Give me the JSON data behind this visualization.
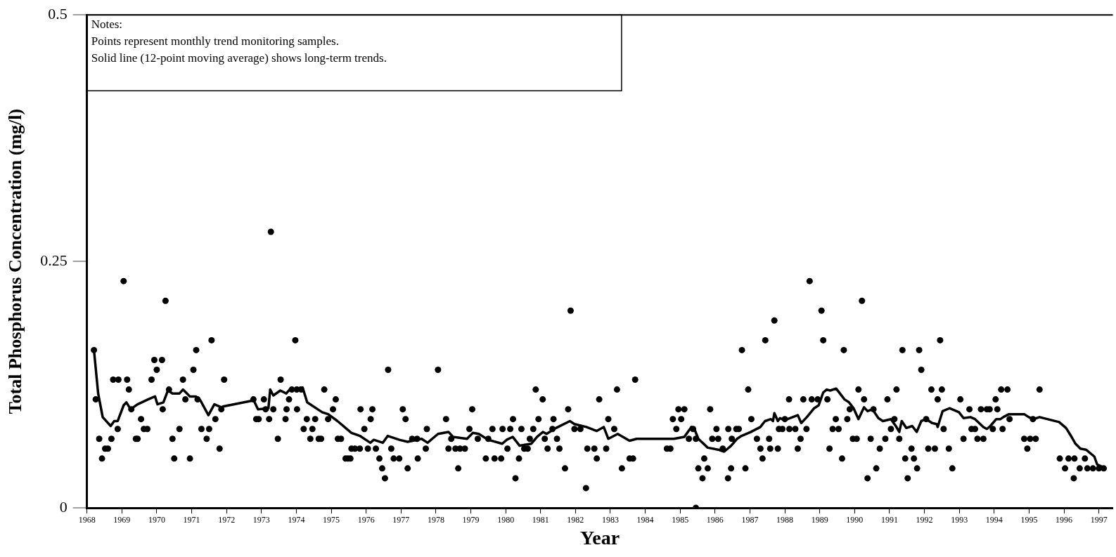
{
  "chart_data": {
    "type": "scatter",
    "xlabel": "Year",
    "ylabel": "Total Phosphorus Concentration (mg/l)",
    "xlim": [
      1968,
      1997.4
    ],
    "xticks": [
      1968,
      1969,
      1970,
      1971,
      1972,
      1973,
      1974,
      1975,
      1976,
      1977,
      1978,
      1979,
      1980,
      1981,
      1982,
      1983,
      1984,
      1985,
      1986,
      1987,
      1988,
      1989,
      1990,
      1991,
      1992,
      1993,
      1994,
      1995,
      1996,
      1997
    ],
    "ylim": [
      0,
      0.5
    ],
    "yticks": [
      0,
      0.25,
      0.5
    ],
    "legend": false,
    "grid": false,
    "annotations": [
      "Notes:",
      "Points represent monthly trend monitoring samples.",
      "Solid line (12-point moving average) shows long-term trends."
    ],
    "series": [
      {
        "color": "#000000",
        "marker": "circle",
        "x": [
          1968.2,
          1968.25,
          1968.35,
          1968.43,
          1968.52,
          1968.6,
          1968.7,
          1968.75,
          1968.88,
          1968.9,
          1969.05,
          1969.15,
          1969.2,
          1969.27,
          1969.4,
          1969.45,
          1969.55,
          1969.63,
          1969.73,
          1969.85,
          1969.93,
          1970.0,
          1970.15,
          1970.17,
          1970.25,
          1970.35,
          1970.45,
          1970.5,
          1970.65,
          1970.75,
          1970.82,
          1970.95,
          1971.05,
          1971.13,
          1971.17,
          1971.28,
          1971.43,
          1971.5,
          1971.57,
          1971.68,
          1971.8,
          1971.85,
          1971.93,
          1972.77,
          1972.85,
          1972.92,
          1973.07,
          1973.12,
          1973.22,
          1973.27,
          1973.34,
          1973.47,
          1973.55,
          1973.69,
          1973.72,
          1973.79,
          1973.87,
          1973.97,
          1974.01,
          1974.02,
          1974.14,
          1974.21,
          1974.3,
          1974.4,
          1974.46,
          1974.54,
          1974.64,
          1974.71,
          1974.8,
          1974.91,
          1975.05,
          1975.13,
          1975.19,
          1975.28,
          1975.41,
          1975.48,
          1975.55,
          1975.58,
          1975.68,
          1975.82,
          1975.84,
          1975.95,
          1976.05,
          1976.13,
          1976.18,
          1976.28,
          1976.38,
          1976.46,
          1976.54,
          1976.63,
          1976.72,
          1976.79,
          1976.95,
          1977.05,
          1977.13,
          1977.19,
          1977.32,
          1977.46,
          1977.48,
          1977.71,
          1977.74,
          1978.06,
          1978.29,
          1978.36,
          1978.44,
          1978.56,
          1978.64,
          1978.69,
          1978.83,
          1978.96,
          1979.04,
          1979.2,
          1979.43,
          1979.5,
          1979.62,
          1979.68,
          1979.87,
          1979.91,
          1980.05,
          1980.13,
          1980.21,
          1980.28,
          1980.38,
          1980.45,
          1980.53,
          1980.63,
          1980.69,
          1980.79,
          1980.86,
          1980.94,
          1981.06,
          1981.12,
          1981.2,
          1981.34,
          1981.37,
          1981.47,
          1981.54,
          1981.7,
          1981.79,
          1981.86,
          1981.97,
          1982.14,
          1982.3,
          1982.34,
          1982.54,
          1982.61,
          1982.68,
          1982.88,
          1982.94,
          1983.11,
          1983.19,
          1983.33,
          1983.55,
          1983.65,
          1983.71,
          1984.62,
          1984.72,
          1984.79,
          1984.89,
          1984.95,
          1985.03,
          1985.12,
          1985.25,
          1985.37,
          1985.45,
          1985.45,
          1985.52,
          1985.64,
          1985.69,
          1985.79,
          1985.86,
          1985.92,
          1986.04,
          1986.09,
          1986.22,
          1986.37,
          1986.38,
          1986.46,
          1986.48,
          1986.61,
          1986.68,
          1986.77,
          1986.87,
          1986.95,
          1987.04,
          1987.2,
          1987.3,
          1987.36,
          1987.44,
          1987.55,
          1987.58,
          1987.7,
          1987.8,
          1987.83,
          1987.93,
          1988.0,
          1988.12,
          1988.13,
          1988.3,
          1988.37,
          1988.45,
          1988.53,
          1988.62,
          1988.71,
          1988.77,
          1988.94,
          1989.05,
          1989.1,
          1989.22,
          1989.28,
          1989.37,
          1989.46,
          1989.54,
          1989.64,
          1989.69,
          1989.79,
          1989.86,
          1989.95,
          1990.06,
          1990.11,
          1990.21,
          1990.27,
          1990.37,
          1990.46,
          1990.54,
          1990.62,
          1990.72,
          1990.88,
          1990.94,
          1991.04,
          1991.14,
          1991.2,
          1991.28,
          1991.37,
          1991.45,
          1991.52,
          1991.63,
          1991.7,
          1991.79,
          1991.85,
          1991.91,
          1992.05,
          1992.11,
          1992.2,
          1992.3,
          1992.38,
          1992.45,
          1992.5,
          1992.55,
          1992.7,
          1992.8,
          1993.03,
          1993.12,
          1993.29,
          1993.35,
          1993.45,
          1993.52,
          1993.62,
          1993.69,
          1993.79,
          1993.87,
          1993.96,
          1994.04,
          1994.09,
          1994.2,
          1994.24,
          1994.38,
          1994.44,
          1994.86,
          1994.95,
          1995.03,
          1995.11,
          1995.19,
          1995.3,
          1995.88,
          1996.03,
          1996.13,
          1996.28,
          1996.3,
          1996.45,
          1996.6,
          1996.67,
          1996.83,
          1997.0,
          1997.14
        ],
        "values": [
          0.16,
          0.11,
          0.07,
          0.05,
          0.06,
          0.06,
          0.07,
          0.13,
          0.08,
          0.13,
          0.23,
          0.13,
          0.12,
          0.1,
          0.07,
          0.07,
          0.09,
          0.08,
          0.08,
          0.13,
          0.15,
          0.14,
          0.15,
          0.1,
          0.21,
          0.12,
          0.07,
          0.05,
          0.08,
          0.13,
          0.11,
          0.05,
          0.14,
          0.16,
          0.11,
          0.08,
          0.07,
          0.08,
          0.17,
          0.09,
          0.06,
          0.1,
          0.13,
          0.11,
          0.09,
          0.09,
          0.11,
          0.1,
          0.09,
          0.28,
          0.1,
          0.07,
          0.13,
          0.09,
          0.1,
          0.11,
          0.12,
          0.17,
          0.12,
          0.1,
          0.12,
          0.08,
          0.09,
          0.07,
          0.08,
          0.09,
          0.07,
          0.07,
          0.12,
          0.09,
          0.1,
          0.11,
          0.07,
          0.07,
          0.05,
          0.05,
          0.05,
          0.06,
          0.06,
          0.06,
          0.1,
          0.08,
          0.06,
          0.09,
          0.1,
          0.06,
          0.05,
          0.04,
          0.03,
          0.14,
          0.06,
          0.05,
          0.05,
          0.1,
          0.09,
          0.04,
          0.07,
          0.07,
          0.05,
          0.06,
          0.08,
          0.14,
          0.09,
          0.06,
          0.07,
          0.06,
          0.04,
          0.06,
          0.06,
          0.08,
          0.1,
          0.07,
          0.05,
          0.07,
          0.08,
          0.05,
          0.05,
          0.08,
          0.06,
          0.08,
          0.09,
          0.03,
          0.05,
          0.08,
          0.06,
          0.06,
          0.07,
          0.08,
          0.12,
          0.09,
          0.11,
          0.07,
          0.06,
          0.08,
          0.09,
          0.07,
          0.06,
          0.04,
          0.1,
          0.2,
          0.08,
          0.08,
          0.02,
          0.06,
          0.06,
          0.05,
          0.11,
          0.06,
          0.09,
          0.08,
          0.12,
          0.04,
          0.05,
          0.05,
          0.13,
          0.06,
          0.06,
          0.09,
          0.08,
          0.1,
          0.09,
          0.1,
          0.07,
          0.08,
          0.07,
          0,
          0.04,
          0.03,
          0.05,
          0.04,
          0.1,
          0.07,
          0.08,
          0.07,
          0.06,
          0.03,
          0.08,
          0.04,
          0.07,
          0.08,
          0.08,
          0.16,
          0.04,
          0.12,
          0.09,
          0.07,
          0.06,
          0.05,
          0.17,
          0.07,
          0.06,
          0.19,
          0.06,
          0.08,
          0.08,
          0.09,
          0.11,
          0.08,
          0.08,
          0.06,
          0.07,
          0.11,
          0.08,
          0.23,
          0.11,
          0.11,
          0.2,
          0.17,
          0.11,
          0.06,
          0.08,
          0.09,
          0.08,
          0.05,
          0.16,
          0.09,
          0.1,
          0.07,
          0.07,
          0.12,
          0.21,
          0.11,
          0.03,
          0.07,
          0.1,
          0.04,
          0.06,
          0.07,
          0.11,
          0.08,
          0.09,
          0.12,
          0.07,
          0.16,
          0.05,
          0.03,
          0.06,
          0.05,
          0.04,
          0.16,
          0.14,
          0.09,
          0.06,
          0.12,
          0.06,
          0.11,
          0.17,
          0.12,
          0.08,
          0.06,
          0.04,
          0.11,
          0.07,
          0.1,
          0.08,
          0.08,
          0.07,
          0.1,
          0.07,
          0.1,
          0.1,
          0.08,
          0.11,
          0.1,
          0.12,
          0.08,
          0.12,
          0.09,
          0.07,
          0.06,
          0.07,
          0.09,
          0.07,
          0.12,
          0.05,
          0.04,
          0.05,
          0.03,
          0.05,
          0.04,
          0.05,
          0.04,
          0.04,
          0.04,
          0.04
        ]
      },
      {
        "type": "line",
        "color": "#000000",
        "line_style": "solid",
        "x": [
          1968.2,
          1968.32,
          1968.45,
          1968.68,
          1968.78,
          1968.88,
          1969.05,
          1969.13,
          1969.25,
          1969.45,
          1969.75,
          1969.95,
          1970.02,
          1970.19,
          1970.32,
          1970.45,
          1970.65,
          1970.75,
          1970.95,
          1971.12,
          1971.25,
          1971.48,
          1971.65,
          1971.85,
          1971.92,
          1972.78,
          1972.9,
          1973.2,
          1973.25,
          1973.34,
          1973.54,
          1973.71,
          1973.81,
          1974.18,
          1974.31,
          1974.74,
          1974.91,
          1975.18,
          1975.58,
          1975.82,
          1976.12,
          1976.22,
          1976.48,
          1976.62,
          1976.95,
          1977.19,
          1977.59,
          1977.76,
          1978.06,
          1978.36,
          1978.49,
          1978.89,
          1979.06,
          1979.23,
          1979.5,
          1979.9,
          1980.03,
          1980.2,
          1980.4,
          1980.73,
          1980.9,
          1981.07,
          1981.17,
          1981.44,
          1981.84,
          1981.97,
          1982.31,
          1982.61,
          1982.81,
          1982.94,
          1983.21,
          1983.55,
          1983.75,
          1984.82,
          1985.12,
          1985.32,
          1985.42,
          1985.52,
          1985.79,
          1986.09,
          1986.26,
          1986.46,
          1986.63,
          1986.76,
          1987.03,
          1987.3,
          1987.43,
          1987.6,
          1987.66,
          1987.7,
          1987.8,
          1987.86,
          1988.0,
          1988.37,
          1988.47,
          1988.63,
          1988.84,
          1988.97,
          1989.1,
          1989.2,
          1989.3,
          1989.47,
          1989.71,
          1989.84,
          1989.97,
          1990.11,
          1990.27,
          1990.37,
          1990.51,
          1990.68,
          1990.81,
          1991.04,
          1991.18,
          1991.28,
          1991.35,
          1991.48,
          1991.65,
          1991.78,
          1991.91,
          1992.05,
          1992.22,
          1992.35,
          1992.38,
          1992.52,
          1992.72,
          1992.99,
          1993.12,
          1993.32,
          1993.45,
          1993.69,
          1993.79,
          1993.89,
          1994.06,
          1994.18,
          1994.26,
          1994.42,
          1994.86,
          1994.99,
          1995.13,
          1995.3,
          1995.86,
          1996.06,
          1996.2,
          1996.33,
          1996.47,
          1996.63,
          1996.87,
          1996.95,
          1997.2
        ],
        "values": [
          0.16,
          0.116,
          0.092,
          0.083,
          0.088,
          0.088,
          0.104,
          0.107,
          0.1,
          0.105,
          0.11,
          0.113,
          0.105,
          0.107,
          0.119,
          0.116,
          0.116,
          0.12,
          0.113,
          0.113,
          0.109,
          0.094,
          0.105,
          0.102,
          0.103,
          0.109,
          0.1,
          0.101,
          0.12,
          0.114,
          0.119,
          0.116,
          0.12,
          0.122,
          0.107,
          0.097,
          0.095,
          0.088,
          0.076,
          0.073,
          0.066,
          0.069,
          0.066,
          0.073,
          0.069,
          0.067,
          0.07,
          0.066,
          0.075,
          0.077,
          0.072,
          0.07,
          0.076,
          0.075,
          0.069,
          0.065,
          0.069,
          0.072,
          0.063,
          0.065,
          0.072,
          0.077,
          0.075,
          0.081,
          0.088,
          0.085,
          0.082,
          0.078,
          0.082,
          0.07,
          0.075,
          0.068,
          0.07,
          0.07,
          0.072,
          0.082,
          0.079,
          0.07,
          0.061,
          0.059,
          0.057,
          0.063,
          0.07,
          0.073,
          0.077,
          0.082,
          0.088,
          0.09,
          0.088,
          0.096,
          0.088,
          0.091,
          0.089,
          0.094,
          0.086,
          0.092,
          0.101,
          0.104,
          0.117,
          0.12,
          0.119,
          0.121,
          0.11,
          0.107,
          0.101,
          0.09,
          0.102,
          0.098,
          0.1,
          0.091,
          0.088,
          0.09,
          0.083,
          0.077,
          0.088,
          0.081,
          0.083,
          0.077,
          0.088,
          0.09,
          0.086,
          0.085,
          0.082,
          0.098,
          0.101,
          0.097,
          0.091,
          0.092,
          0.09,
          0.082,
          0.08,
          0.083,
          0.09,
          0.09,
          0.092,
          0.095,
          0.095,
          0.092,
          0.09,
          0.092,
          0.087,
          0.081,
          0.073,
          0.065,
          0.06,
          0.059,
          0.052,
          0.044,
          0.04
        ]
      }
    ]
  }
}
